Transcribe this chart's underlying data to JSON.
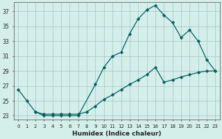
{
  "xlabel": "Humidex (Indice chaleur)",
  "background_color": "#d4eeea",
  "grid_color": "#aaccc8",
  "line_color": "#006060",
  "xlim": [
    -0.5,
    23.5
  ],
  "ylim": [
    22.5,
    38.2
  ],
  "xticks": [
    0,
    1,
    2,
    3,
    4,
    5,
    6,
    7,
    8,
    9,
    10,
    11,
    12,
    13,
    14,
    15,
    16,
    17,
    18,
    19,
    20,
    21,
    22,
    23
  ],
  "yticks": [
    23,
    25,
    27,
    29,
    31,
    33,
    35,
    37
  ],
  "curve1_x": [
    0,
    1,
    2,
    3,
    4,
    5,
    6,
    7,
    9,
    10,
    11,
    12,
    13,
    14,
    15,
    16,
    17,
    18,
    19,
    20,
    21,
    22,
    23
  ],
  "curve1_y": [
    26.5,
    25.0,
    23.5,
    23.0,
    23.0,
    23.0,
    23.0,
    23.0,
    27.2,
    29.5,
    31.0,
    31.5,
    34.0,
    36.0,
    37.2,
    37.8,
    36.5,
    35.5,
    33.5,
    34.5,
    33.0,
    30.5,
    29.0
  ],
  "curve2_x": [
    2,
    3,
    4,
    5,
    6,
    7,
    8,
    9,
    10,
    11,
    12,
    13,
    14,
    15,
    16,
    17,
    18,
    19,
    20,
    21,
    22,
    23
  ],
  "curve2_y": [
    23.5,
    23.2,
    23.2,
    23.2,
    23.2,
    23.2,
    23.5,
    24.3,
    25.2,
    25.8,
    26.5,
    27.2,
    27.8,
    28.5,
    29.5,
    27.5,
    27.8,
    28.2,
    28.5,
    28.8,
    29.0,
    29.0
  ]
}
